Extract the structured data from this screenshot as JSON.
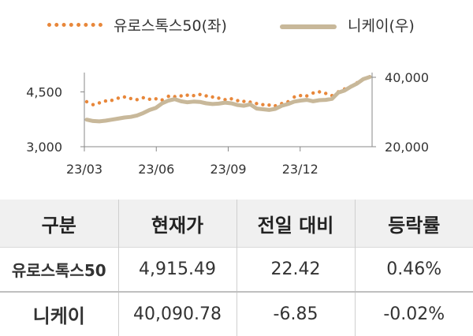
{
  "legend": {
    "euro": "유로스톡스50(좌)",
    "nikkei": "니케이(우)"
  },
  "chart_data": {
    "type": "line",
    "x_ticks": [
      "23/03",
      "23/06",
      "23/09",
      "23/12"
    ],
    "y_left_ticks": [
      "3,000",
      "4,500"
    ],
    "y_right_ticks": [
      "20,000",
      "40,000"
    ],
    "y_left_range": [
      3000,
      4900
    ],
    "y_right_range": [
      20000,
      40000
    ],
    "colors": {
      "euro": "#e8873a",
      "nikkei": "#c8b89a"
    },
    "series": [
      {
        "name": "유로스톡스50(좌)",
        "axis": "left",
        "style": "dotted",
        "values": [
          4230,
          4150,
          4200,
          4250,
          4270,
          4330,
          4360,
          4320,
          4290,
          4340,
          4300,
          4310,
          4280,
          4380,
          4370,
          4390,
          4410,
          4400,
          4430,
          4390,
          4360,
          4330,
          4290,
          4310,
          4260,
          4240,
          4220,
          4180,
          4150,
          4140,
          4120,
          4180,
          4230,
          4360,
          4400,
          4390,
          4470,
          4500,
          4460,
          4400,
          4500,
          4580,
          4650,
          4750,
          4850,
          4915
        ]
      },
      {
        "name": "니케이(우)",
        "axis": "right",
        "style": "solid",
        "values": [
          27800,
          27400,
          27300,
          27500,
          27800,
          28100,
          28400,
          28600,
          29000,
          29700,
          30600,
          31200,
          32500,
          33300,
          33700,
          33100,
          32800,
          33000,
          32900,
          32500,
          32300,
          32400,
          32700,
          32500,
          32000,
          31800,
          32200,
          31000,
          30800,
          30600,
          30900,
          31800,
          32300,
          33000,
          33300,
          33500,
          33100,
          33400,
          33500,
          33800,
          35600,
          36200,
          37300,
          38200,
          39500,
          40090
        ]
      }
    ]
  },
  "table": {
    "headers": [
      "구분",
      "현재가",
      "전일 대비",
      "등락률"
    ],
    "rows": [
      [
        "유로스톡스50",
        "4,915.49",
        "22.42",
        "0.46%"
      ],
      [
        "니케이",
        "40,090.78",
        "-6.85",
        "-0.02%"
      ]
    ]
  }
}
